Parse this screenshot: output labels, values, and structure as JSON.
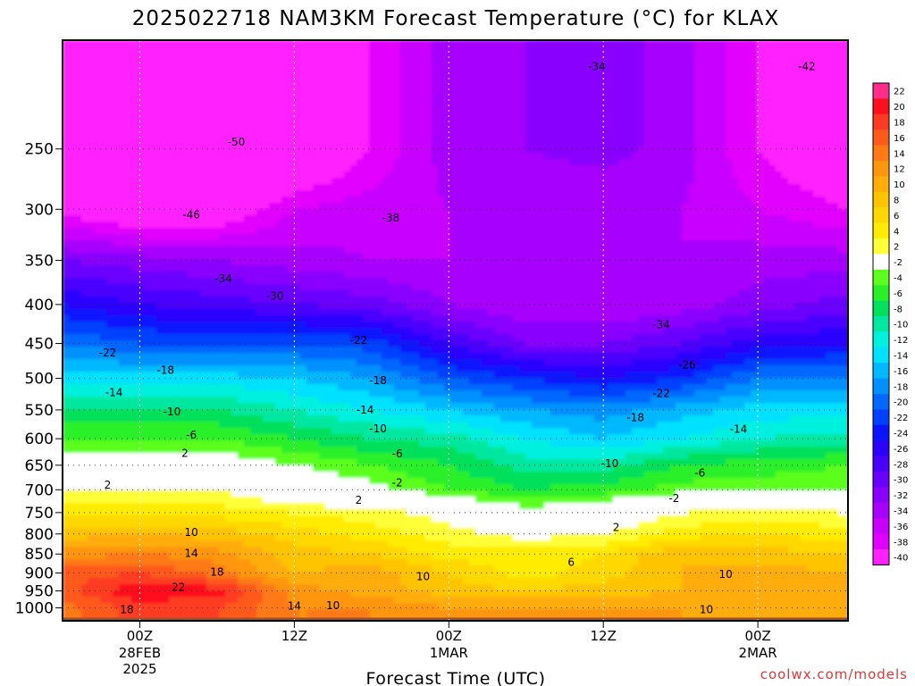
{
  "title": "2025022718 NAM3KM Forecast Temperature (°C) for KLAX",
  "credit": "coolwx.com/models",
  "chart_data": {
    "type": "heatmap",
    "title": "2025022718 NAM3KM Forecast Temperature (°C) for KLAX",
    "xlabel": "Forecast Time (UTC)",
    "ylabel": "",
    "x_ticks": [
      {
        "label": "00Z",
        "sub": [
          "28FEB",
          "2025"
        ],
        "hours": 6
      },
      {
        "label": "12Z",
        "sub": [],
        "hours": 18
      },
      {
        "label": "00Z",
        "sub": [
          "1MAR"
        ],
        "hours": 30
      },
      {
        "label": "12Z",
        "sub": [],
        "hours": 42
      },
      {
        "label": "00Z",
        "sub": [
          "2MAR"
        ],
        "hours": 54
      }
    ],
    "xlim_hours": [
      0,
      61
    ],
    "y_scale": "log-pressure (hPa)",
    "ylim": [
      1040,
      180
    ],
    "y_ticks": [
      250,
      300,
      350,
      400,
      450,
      500,
      550,
      600,
      650,
      700,
      750,
      800,
      850,
      900,
      950,
      1000
    ],
    "colorbar_levels": [
      "22",
      "20",
      "18",
      "16",
      "14",
      "12",
      "10",
      "8",
      "6",
      "4",
      "2",
      "-2",
      "-4",
      "-6",
      "-8",
      "-10",
      "-12",
      "-14",
      "-16",
      "-18",
      "-20",
      "-22",
      "-24",
      "-26",
      "-28",
      "-30",
      "-32",
      "-34",
      "-36",
      "-38",
      "-40"
    ],
    "colorbar_colors": [
      "#ff2d8a",
      "#ff0f1e",
      "#ff3a22",
      "#ff5a1a",
      "#ff7a14",
      "#ff960d",
      "#ffad08",
      "#ffc400",
      "#ffd800",
      "#ffec00",
      "#ffff38",
      "#ffffff",
      "#5cff1e",
      "#2af02a",
      "#00e05a",
      "#00e8a0",
      "#00f0e0",
      "#00e0ff",
      "#00b8ff",
      "#0090ff",
      "#0068ff",
      "#0040ff",
      "#0a14ff",
      "#2a00ff",
      "#4a00ff",
      "#6a00ff",
      "#8a00ff",
      "#a800ff",
      "#c800ff",
      "#e200ff",
      "#ff20ff"
    ],
    "time_height_temps": {
      "hours": [
        0,
        6,
        12,
        18,
        24,
        30,
        36,
        42,
        48,
        54,
        61
      ],
      "levels_hPa": [
        1000,
        950,
        900,
        850,
        800,
        750,
        700,
        650,
        600,
        550,
        500,
        450,
        400,
        350,
        300,
        250
      ],
      "rows_temp_C": [
        [
          15,
          19,
          18,
          14,
          14,
          12,
          12,
          12,
          12,
          11,
          12
        ],
        [
          17,
          22,
          21,
          13,
          11,
          9,
          8,
          9,
          10,
          12,
          11
        ],
        [
          17,
          18,
          15,
          10,
          11,
          8,
          5,
          7,
          10,
          11,
          10
        ],
        [
          13,
          14,
          13,
          9,
          8,
          5,
          5,
          6,
          10,
          9,
          8
        ],
        [
          9,
          10,
          9,
          7,
          5,
          3,
          1,
          2,
          5,
          6,
          5
        ],
        [
          5,
          5,
          5,
          4,
          3,
          1,
          -3,
          -1,
          2,
          3,
          2
        ],
        [
          2,
          2,
          2,
          -1,
          -3,
          -6,
          -8,
          -7,
          -5,
          -5,
          -4
        ],
        [
          -2,
          -2,
          -2,
          -4,
          -6,
          -8,
          -11,
          -11,
          -8,
          -7,
          -6
        ],
        [
          -6,
          -6,
          -6,
          -8,
          -10,
          -11,
          -14,
          -16,
          -14,
          -12,
          -11
        ],
        [
          -10,
          -10,
          -10,
          -12,
          -14,
          -16,
          -18,
          -19,
          -17,
          -15,
          -15
        ],
        [
          -15,
          -15,
          -15,
          -16,
          -18,
          -22,
          -24,
          -26,
          -24,
          -20,
          -20
        ],
        [
          -20,
          -22,
          -22,
          -22,
          -23,
          -28,
          -32,
          -32,
          -30,
          -27,
          -26
        ],
        [
          -26,
          -28,
          -29,
          -30,
          -31,
          -34,
          -36,
          -36,
          -35,
          -33,
          -31
        ],
        [
          -32,
          -33,
          -34,
          -35,
          -36,
          -36,
          -36,
          -36,
          -36,
          -35,
          -35
        ],
        [
          -41,
          -44,
          -43,
          -38,
          -37,
          -36,
          -36,
          -36,
          -36,
          -38,
          -40
        ],
        [
          -49,
          -51,
          -50,
          -45,
          -40,
          -35,
          -34,
          -33,
          -35,
          -40,
          -44
        ]
      ]
    },
    "contour_labels": [
      {
        "text": "-50",
        "h": 13.5,
        "p": 245
      },
      {
        "text": "-46",
        "h": 10,
        "p": 305
      },
      {
        "text": "-38",
        "h": 25.5,
        "p": 308
      },
      {
        "text": "-34",
        "h": 41.5,
        "p": 195
      },
      {
        "text": "-42",
        "h": 57.8,
        "p": 195
      },
      {
        "text": "-34",
        "h": 12.5,
        "p": 370
      },
      {
        "text": "-30",
        "h": 16.5,
        "p": 390
      },
      {
        "text": "-34",
        "h": 46.5,
        "p": 425
      },
      {
        "text": "-22",
        "h": 3.5,
        "p": 463
      },
      {
        "text": "-22",
        "h": 23,
        "p": 446
      },
      {
        "text": "-26",
        "h": 48.5,
        "p": 480
      },
      {
        "text": "-18",
        "h": 8,
        "p": 488
      },
      {
        "text": "-18",
        "h": 24.5,
        "p": 503
      },
      {
        "text": "-22",
        "h": 46.5,
        "p": 523
      },
      {
        "text": "-14",
        "h": 4,
        "p": 522
      },
      {
        "text": "-14",
        "h": 23.5,
        "p": 550
      },
      {
        "text": "-18",
        "h": 44.5,
        "p": 563
      },
      {
        "text": "-10",
        "h": 8.5,
        "p": 553
      },
      {
        "text": "-10",
        "h": 24.5,
        "p": 582
      },
      {
        "text": "-14",
        "h": 52.5,
        "p": 583
      },
      {
        "text": "-6",
        "h": 10,
        "p": 593
      },
      {
        "text": "-6",
        "h": 26,
        "p": 628
      },
      {
        "text": "-10",
        "h": 42.5,
        "p": 647
      },
      {
        "text": "-6",
        "h": 49.5,
        "p": 665
      },
      {
        "text": "2",
        "h": 9.5,
        "p": 627
      },
      {
        "text": "-2",
        "h": 26,
        "p": 685
      },
      {
        "text": "-2",
        "h": 47.5,
        "p": 719
      },
      {
        "text": "2",
        "h": 3.5,
        "p": 690
      },
      {
        "text": "2",
        "h": 23,
        "p": 722
      },
      {
        "text": "2",
        "h": 43,
        "p": 784
      },
      {
        "text": "10",
        "h": 10,
        "p": 796
      },
      {
        "text": "14",
        "h": 10,
        "p": 848
      },
      {
        "text": "18",
        "h": 12,
        "p": 898
      },
      {
        "text": "22",
        "h": 9,
        "p": 940
      },
      {
        "text": "18",
        "h": 5,
        "p": 1005
      },
      {
        "text": "6",
        "h": 39.5,
        "p": 872
      },
      {
        "text": "10",
        "h": 28,
        "p": 910
      },
      {
        "text": "10",
        "h": 51.5,
        "p": 904
      },
      {
        "text": "14",
        "h": 18,
        "p": 995
      },
      {
        "text": "10",
        "h": 21,
        "p": 994
      },
      {
        "text": "10",
        "h": 50,
        "p": 1005
      }
    ]
  }
}
